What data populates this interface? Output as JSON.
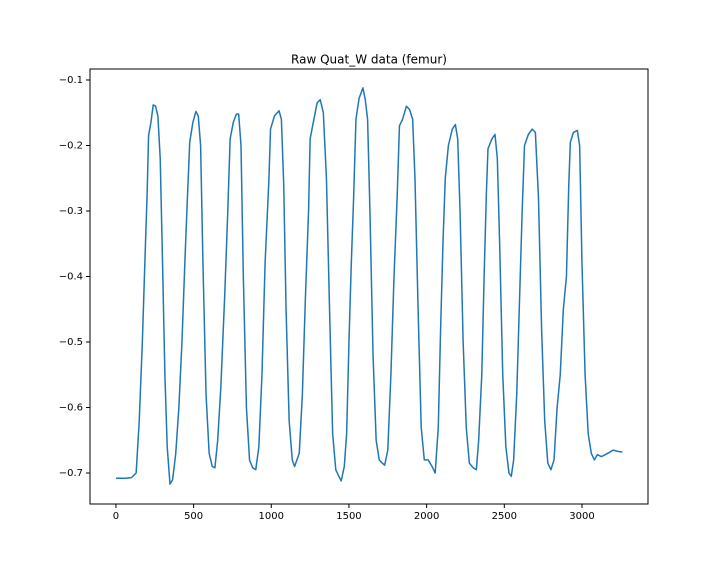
{
  "chart_data": {
    "type": "line",
    "title": "Raw Quat_W data (femur)",
    "x": [
      0,
      60,
      100,
      130,
      150,
      170,
      190,
      200,
      210,
      225,
      240,
      255,
      270,
      285,
      300,
      315,
      330,
      348,
      365,
      385,
      405,
      425,
      445,
      460,
      475,
      495,
      515,
      530,
      545,
      560,
      580,
      600,
      620,
      637,
      655,
      675,
      700,
      720,
      735,
      755,
      775,
      790,
      805,
      820,
      840,
      860,
      880,
      900,
      920,
      940,
      960,
      985,
      995,
      1020,
      1050,
      1065,
      1080,
      1095,
      1115,
      1135,
      1150,
      1165,
      1180,
      1200,
      1220,
      1240,
      1250,
      1270,
      1295,
      1315,
      1335,
      1355,
      1375,
      1395,
      1415,
      1435,
      1450,
      1470,
      1485,
      1500,
      1515,
      1530,
      1545,
      1565,
      1590,
      1605,
      1620,
      1635,
      1655,
      1675,
      1695,
      1715,
      1730,
      1750,
      1770,
      1790,
      1810,
      1825,
      1845,
      1870,
      1890,
      1910,
      1925,
      1945,
      1965,
      1985,
      2010,
      2035,
      2055,
      2075,
      2090,
      2105,
      2120,
      2140,
      2165,
      2185,
      2200,
      2215,
      2235,
      2255,
      2275,
      2300,
      2320,
      2335,
      2355,
      2370,
      2385,
      2395,
      2420,
      2440,
      2455,
      2470,
      2490,
      2510,
      2530,
      2545,
      2560,
      2580,
      2600,
      2615,
      2630,
      2655,
      2680,
      2700,
      2720,
      2740,
      2760,
      2780,
      2800,
      2820,
      2840,
      2860,
      2880,
      2900,
      2915,
      2925,
      2945,
      2970,
      2985,
      3000,
      3020,
      3040,
      3060,
      3080,
      3100,
      3125,
      3150,
      3180,
      3200,
      3230,
      3260
    ],
    "values": [
      -0.708,
      -0.708,
      -0.707,
      -0.7,
      -0.62,
      -0.5,
      -0.35,
      -0.28,
      -0.185,
      -0.165,
      -0.138,
      -0.14,
      -0.155,
      -0.22,
      -0.38,
      -0.55,
      -0.66,
      -0.717,
      -0.71,
      -0.67,
      -0.6,
      -0.5,
      -0.37,
      -0.28,
      -0.195,
      -0.165,
      -0.148,
      -0.155,
      -0.2,
      -0.38,
      -0.58,
      -0.67,
      -0.69,
      -0.692,
      -0.65,
      -0.57,
      -0.43,
      -0.3,
      -0.19,
      -0.165,
      -0.152,
      -0.152,
      -0.2,
      -0.4,
      -0.6,
      -0.68,
      -0.692,
      -0.695,
      -0.66,
      -0.55,
      -0.38,
      -0.25,
      -0.175,
      -0.155,
      -0.147,
      -0.16,
      -0.26,
      -0.45,
      -0.62,
      -0.68,
      -0.69,
      -0.68,
      -0.67,
      -0.58,
      -0.43,
      -0.3,
      -0.19,
      -0.165,
      -0.135,
      -0.13,
      -0.15,
      -0.25,
      -0.45,
      -0.64,
      -0.695,
      -0.705,
      -0.712,
      -0.69,
      -0.64,
      -0.5,
      -0.38,
      -0.28,
      -0.16,
      -0.128,
      -0.112,
      -0.13,
      -0.16,
      -0.3,
      -0.52,
      -0.65,
      -0.68,
      -0.685,
      -0.688,
      -0.665,
      -0.55,
      -0.4,
      -0.28,
      -0.17,
      -0.16,
      -0.14,
      -0.145,
      -0.16,
      -0.25,
      -0.45,
      -0.63,
      -0.68,
      -0.68,
      -0.69,
      -0.7,
      -0.63,
      -0.48,
      -0.35,
      -0.25,
      -0.2,
      -0.175,
      -0.168,
      -0.19,
      -0.3,
      -0.5,
      -0.63,
      -0.685,
      -0.692,
      -0.695,
      -0.65,
      -0.55,
      -0.4,
      -0.27,
      -0.205,
      -0.19,
      -0.183,
      -0.22,
      -0.35,
      -0.55,
      -0.66,
      -0.7,
      -0.705,
      -0.68,
      -0.58,
      -0.42,
      -0.3,
      -0.2,
      -0.183,
      -0.175,
      -0.18,
      -0.28,
      -0.48,
      -0.62,
      -0.685,
      -0.695,
      -0.68,
      -0.6,
      -0.55,
      -0.45,
      -0.4,
      -0.26,
      -0.195,
      -0.18,
      -0.177,
      -0.2,
      -0.38,
      -0.55,
      -0.64,
      -0.67,
      -0.68,
      -0.672,
      -0.675,
      -0.672,
      -0.668,
      -0.665,
      -0.667,
      -0.668
    ],
    "color": "#1f77b4",
    "xlim": [
      -167,
      3425
    ],
    "xticks": [
      0,
      500,
      1000,
      1500,
      2000,
      2500,
      3000
    ],
    "ylim": [
      -0.7473,
      -0.0832
    ],
    "yticks": [
      {
        "value": -0.1,
        "label": "−0.1"
      },
      {
        "value": -0.2,
        "label": "−0.2"
      },
      {
        "value": -0.3,
        "label": "−0.3"
      },
      {
        "value": -0.4,
        "label": "−0.4"
      },
      {
        "value": -0.5,
        "label": "−0.5"
      },
      {
        "value": -0.6,
        "label": "−0.6"
      },
      {
        "value": -0.7,
        "label": "−0.7"
      }
    ]
  }
}
